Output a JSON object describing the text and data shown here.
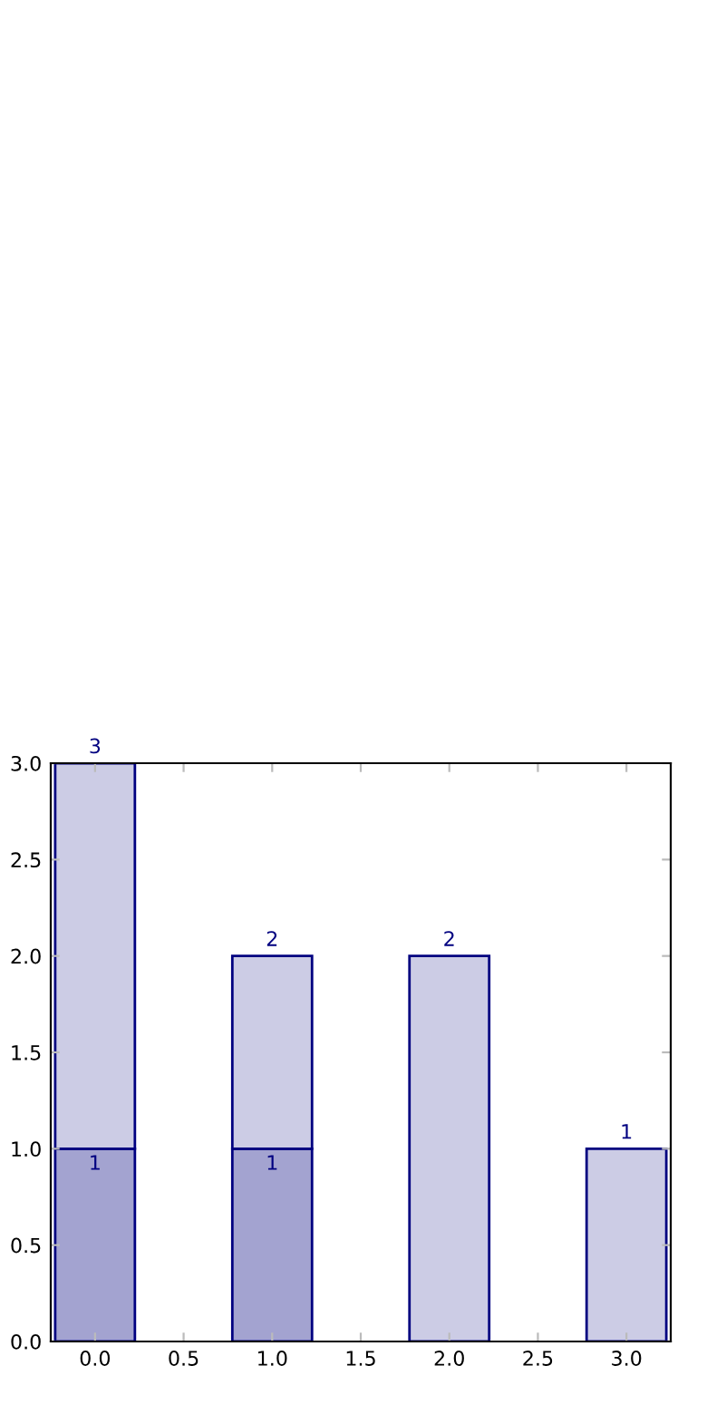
{
  "chart_data": {
    "type": "bar",
    "x": [
      0,
      1,
      2,
      3
    ],
    "stacked": true,
    "series": [
      {
        "color": "#a3a3d0",
        "values": [
          1,
          1,
          null,
          null
        ],
        "value_labels": [
          "1",
          "1",
          null,
          null
        ]
      },
      {
        "color": "#ccccE5",
        "values": [
          2,
          1,
          2,
          1
        ]
      }
    ],
    "totals": [
      "3",
      "2",
      "2",
      "1"
    ],
    "xlim": [
      -0.25,
      3.25
    ],
    "xticks": [
      {
        "value": 0,
        "label": "0.0"
      },
      {
        "value": 0.5,
        "label": "0.5"
      },
      {
        "value": 1,
        "label": "1.0"
      },
      {
        "value": 1.5,
        "label": "1.5"
      },
      {
        "value": 2,
        "label": "2.0"
      },
      {
        "value": 2.5,
        "label": "2.5"
      },
      {
        "value": 3,
        "label": "3.0"
      }
    ],
    "ylim": [
      0,
      3
    ],
    "yticks": [
      {
        "value": 0,
        "label": "0.0"
      },
      {
        "value": 0.5,
        "label": "0.5"
      },
      {
        "value": 1,
        "label": "1.0"
      },
      {
        "value": 1.5,
        "label": "1.5"
      },
      {
        "value": 2,
        "label": "2.0"
      },
      {
        "value": 2.5,
        "label": "2.5"
      },
      {
        "value": 3,
        "label": "3.0"
      }
    ],
    "grid": false,
    "legend": false
  }
}
